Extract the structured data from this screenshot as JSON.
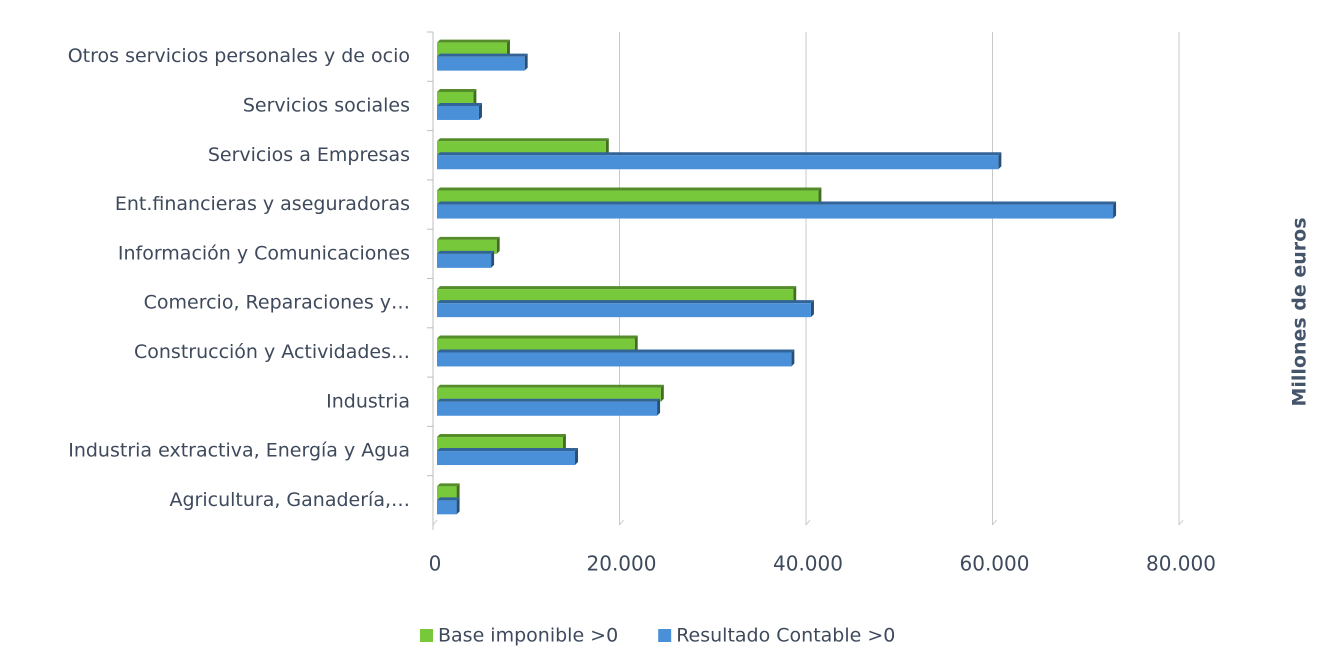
{
  "chart_data": {
    "type": "hbar",
    "y_axis_label": "Millones de euros",
    "categories": [
      "Otros servicios personales y de ocio",
      "Servicios sociales",
      "Servicios a Empresas",
      "Ent.financieras y aseguradoras",
      "Información y Comunicaciones",
      "Comercio, Reparaciones y…",
      "Construcción y Actividades…",
      "Industria",
      "Industria extractiva, Energía y Agua",
      "Agricultura, Ganadería,…"
    ],
    "series": [
      {
        "name": "Base imponible >0",
        "color": "#77c83a",
        "values": [
          7500,
          3900,
          18100,
          40900,
          6400,
          38200,
          21200,
          24000,
          13500,
          2100
        ]
      },
      {
        "name": "Resultado Contable >0",
        "color": "#4a90d9",
        "values": [
          9400,
          4500,
          60200,
          72500,
          5800,
          40100,
          38000,
          23600,
          14800,
          2100
        ]
      }
    ],
    "xlim": [
      0,
      80000
    ],
    "xticks": [
      0,
      {
        "value": 20000,
        "label": "20.000"
      },
      {
        "value": 40000,
        "label": "40.000"
      },
      {
        "value": 60000,
        "label": "60.000"
      },
      {
        "value": 80000,
        "label": "80.000"
      }
    ],
    "grid": true,
    "legend": "bottom"
  }
}
